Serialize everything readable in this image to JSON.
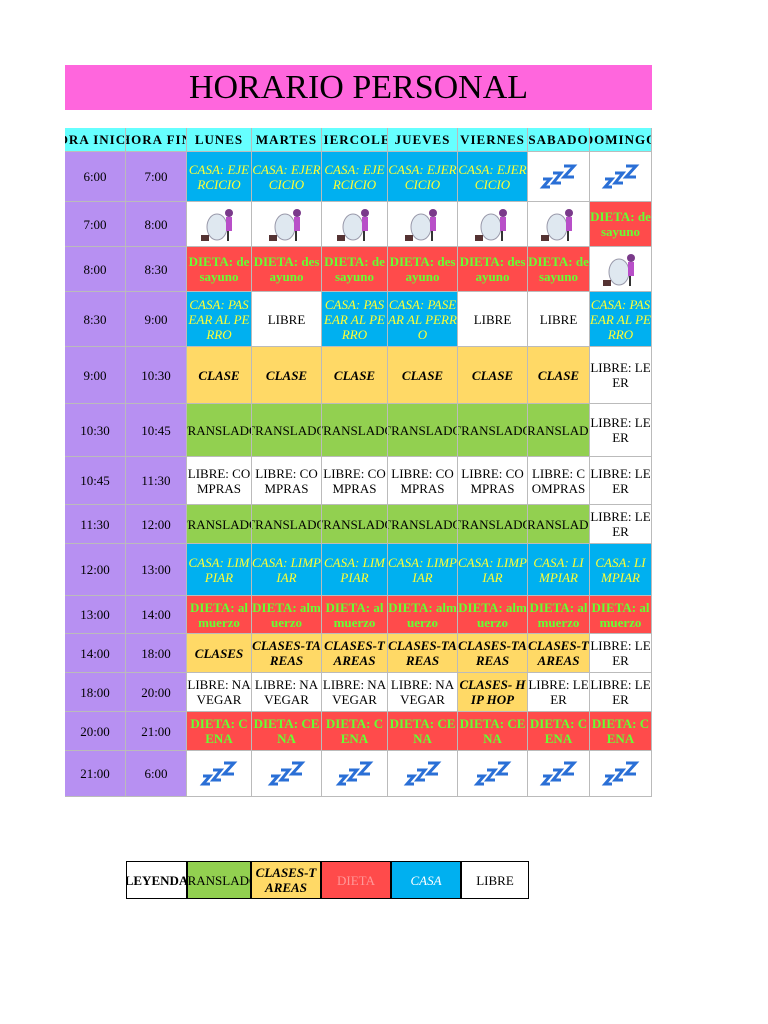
{
  "title": "HORARIO PERSONAL",
  "table": {
    "header": [
      "HORA INICIO",
      "HORA FIN",
      "LUNES",
      "MARTES",
      "MIERCOLES",
      "JUEVES",
      "VIERNES",
      "SABADO",
      "DOMINGO"
    ],
    "rows": [
      [
        "6:00",
        "7:00",
        "CASA: EJERCICIO",
        "CASA: EJERCICIO",
        "CASA: EJERCICIO",
        "CASA: EJERCICIO",
        "CASA: EJERCICIO",
        null,
        null
      ],
      [
        "7:00",
        "8:00",
        null,
        null,
        null,
        null,
        null,
        null,
        "DIETA: desayuno"
      ],
      [
        "8:00",
        "8:30",
        "DIETA: desayuno",
        "DIETA: desayuno",
        "DIETA: desayuno",
        "DIETA: desayuno",
        "DIETA: desayuno",
        "DIETA: desayuno",
        null
      ],
      [
        "8:30",
        "9:00",
        "CASA: PASEAR AL PERRO",
        "LIBRE",
        "CASA: PASEAR AL PERRO",
        "CASA: PASEAR AL PERRO",
        "LIBRE",
        "LIBRE",
        "CASA: PASEAR AL PERRO"
      ],
      [
        "9:00",
        "10:30",
        "CLASE",
        "CLASE",
        "CLASE",
        "CLASE",
        "CLASE",
        "CLASE",
        "LIBRE: LEER"
      ],
      [
        "10:30",
        "10:45",
        "TRANSLADO",
        "TRANSLADO",
        "TRANSLADO",
        "TRANSLADO",
        "TRANSLADO",
        "TRANSLADO",
        "LIBRE: LEER"
      ],
      [
        "10:45",
        "11:30",
        "LIBRE: COMPRAS",
        "LIBRE: COMPRAS",
        "LIBRE: COMPRAS",
        "LIBRE: COMPRAS",
        "LIBRE: COMPRAS",
        "LIBRE: COMPRAS",
        "LIBRE: LEER"
      ],
      [
        "11:30",
        "12:00",
        "TRANSLADO",
        "TRANSLADO",
        "TRANSLADO",
        "TRANSLADO",
        "TRANSLADO",
        "TRANSLADO",
        "LIBRE: LEER"
      ],
      [
        "12:00",
        "13:00",
        "CASA: LIMPIAR",
        "CASA: LIMPIAR",
        "CASA: LIMPIAR",
        "CASA: LIMPIAR",
        "CASA: LIMPIAR",
        "CASA: LIMPIAR",
        "CASA: LIMPIAR"
      ],
      [
        "13:00",
        "14:00",
        "DIETA: almuerzo",
        "DIETA: almuerzo",
        "DIETA: almuerzo",
        "DIETA: almuerzo",
        "DIETA: almuerzo",
        "DIETA: almuerzo",
        "DIETA: almuerzo"
      ],
      [
        "14:00",
        "18:00",
        "CLASES",
        "CLASES-TAREAS",
        "CLASES-TAREAS",
        "CLASES-TAREAS",
        "CLASES-TAREAS",
        "CLASES-TAREAS",
        "LIBRE: LEER"
      ],
      [
        "18:00",
        "20:00",
        "LIBRE: NAVEGAR",
        "LIBRE: NAVEGAR",
        "LIBRE: NAVEGAR",
        "LIBRE: NAVEGAR",
        "CLASES- HIP HOP",
        "LIBRE: LEER",
        "LIBRE: LEER"
      ],
      [
        "20:00",
        "21:00",
        "DIETA: CENA",
        "DIETA: CENA",
        "DIETA: CENA",
        "DIETA: CENA",
        "DIETA: CENA",
        "DIETA: CENA",
        "DIETA: CENA"
      ],
      [
        "21:00",
        "6:00",
        null,
        null,
        null,
        null,
        null,
        null,
        null
      ]
    ]
  },
  "legend": [
    "LEYENDA",
    "TRANSLADO",
    "CLASES-TAREAS",
    "DIETA",
    "CASA",
    "LIBRE"
  ]
}
